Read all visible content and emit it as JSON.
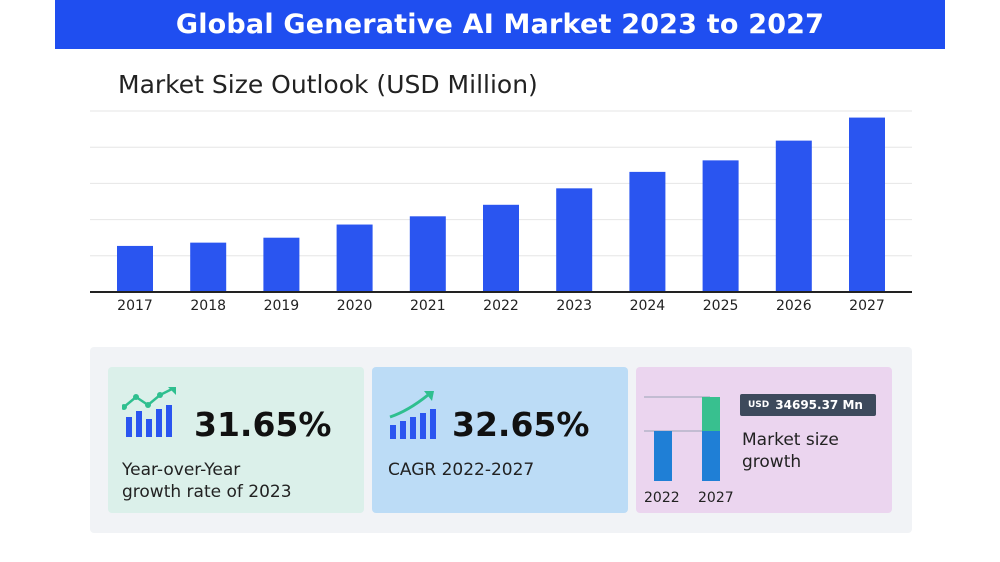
{
  "header": {
    "title": "Global Generative AI Market 2023 to 2027"
  },
  "chart_data": {
    "type": "bar",
    "title": "Market Size Outlook (USD Million)",
    "categories": [
      "2017",
      "2018",
      "2019",
      "2020",
      "2021",
      "2022",
      "2023",
      "2024",
      "2025",
      "2026",
      "2027"
    ],
    "values": [
      14,
      15,
      16.5,
      20.5,
      23,
      26.5,
      31.5,
      36.5,
      40,
      46,
      53
    ],
    "ylim": [
      0,
      55
    ],
    "grid": true,
    "colors": {
      "bar": "#2a55f0",
      "grid": "#e6e6e6",
      "axis": "#222222"
    }
  },
  "stats": {
    "yoy": {
      "value": "31.65%",
      "label_line1": "Year-over-Year",
      "label_line2": "growth rate of 2023"
    },
    "cagr": {
      "value": "32.65%",
      "label": "CAGR 2022-2027"
    },
    "growth": {
      "currency": "USD",
      "amount": "34695.37 Mn",
      "label_line1": "Market size",
      "label_line2": "growth",
      "years": [
        "2022",
        "2027"
      ]
    }
  }
}
